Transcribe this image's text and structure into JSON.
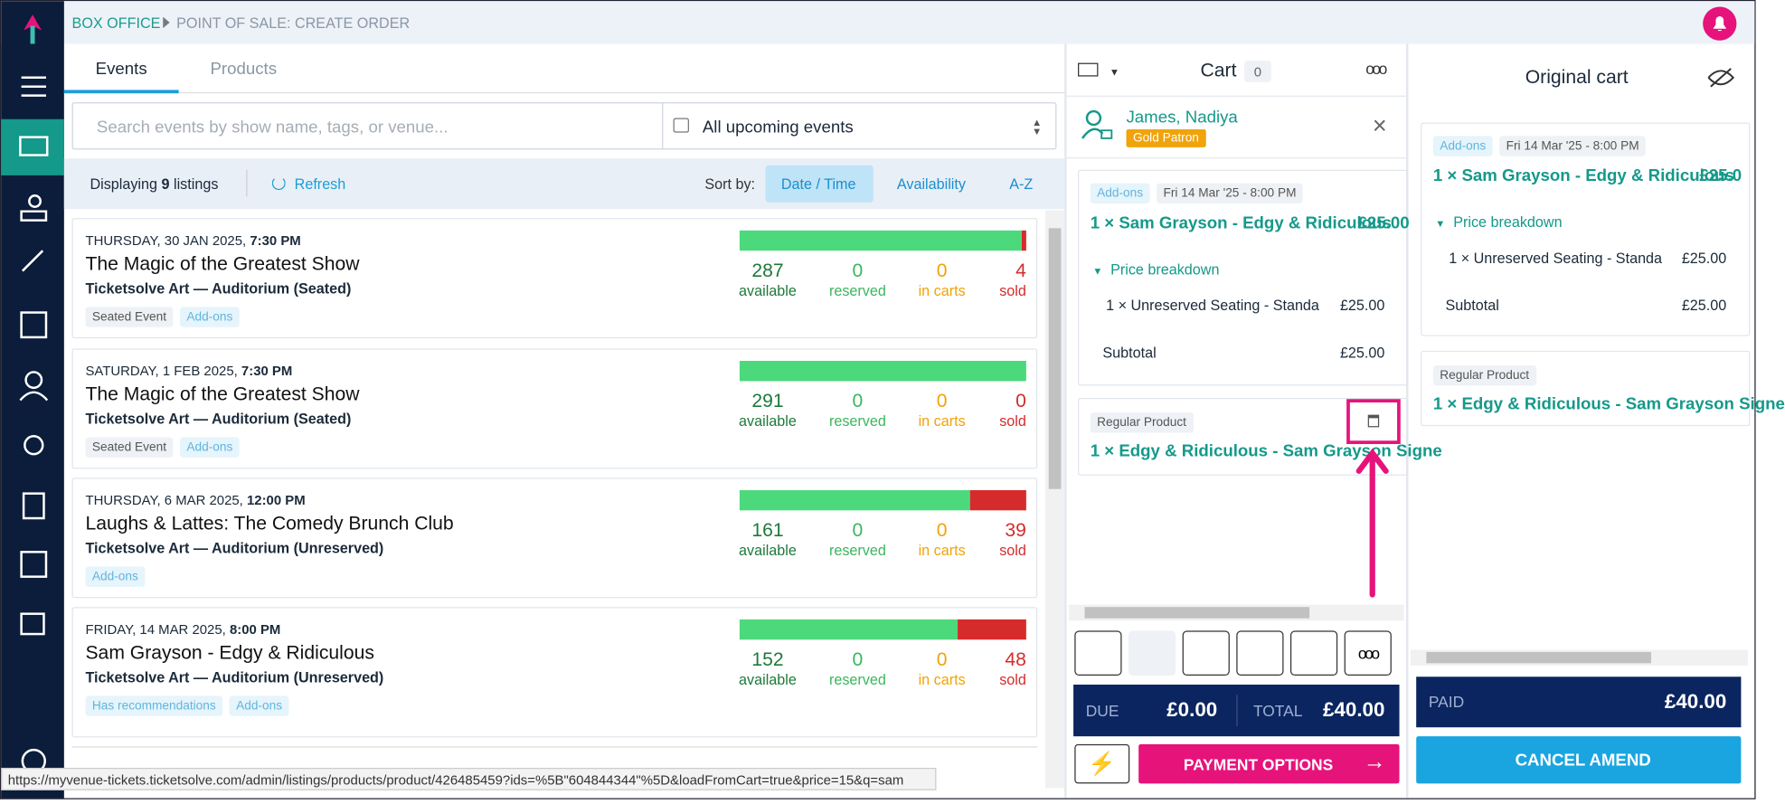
{
  "breadcrumb": {
    "root": "BOX OFFICE",
    "current": "POINT OF SALE: CREATE ORDER"
  },
  "tabs": [
    "Events",
    "Products"
  ],
  "search": {
    "placeholder": "Search events by show name, tags, or venue...",
    "filter": "All upcoming events"
  },
  "listing_bar": {
    "prefix": "Displaying",
    "count": 9,
    "suffix": "listings",
    "refresh": "Refresh",
    "sort_label": "Sort by:",
    "sort_options": [
      "Date / Time",
      "Availability",
      "A-Z"
    ]
  },
  "events": [
    {
      "date": "THURSDAY, 30 JAN 2025,",
      "time": "7:30 PM",
      "title": "The Magic of the Greatest Show",
      "venue": "Ticketsolve Art — Auditorium (Seated)",
      "tags": [
        "Seated Event",
        "Add-ons"
      ],
      "stats": [
        {
          "value": 287,
          "label": "available"
        },
        {
          "value": 0,
          "label": "reserved"
        },
        {
          "value": 0,
          "label": "in carts"
        },
        {
          "value": 4,
          "label": "sold"
        }
      ]
    },
    {
      "date": "SATURDAY, 1 FEB 2025,",
      "time": "7:30 PM",
      "title": "The Magic of the Greatest Show",
      "venue": "Ticketsolve Art — Auditorium (Seated)",
      "tags": [
        "Seated Event",
        "Add-ons"
      ],
      "stats": [
        {
          "value": 291,
          "label": "available"
        },
        {
          "value": 0,
          "label": "reserved"
        },
        {
          "value": 0,
          "label": "in carts"
        },
        {
          "value": 0,
          "label": "sold"
        }
      ]
    },
    {
      "date": "THURSDAY, 6 MAR 2025,",
      "time": "12:00 PM",
      "title": "Laughs & Lattes: The Comedy Brunch Club",
      "venue": "Ticketsolve Art — Auditorium (Unreserved)",
      "tags": [
        "Add-ons"
      ],
      "stats": [
        {
          "value": 161,
          "label": "available"
        },
        {
          "value": 0,
          "label": "reserved"
        },
        {
          "value": 0,
          "label": "in carts"
        },
        {
          "value": 39,
          "label": "sold"
        }
      ]
    },
    {
      "date": "FRIDAY, 14 MAR 2025,",
      "time": "8:00 PM",
      "title": "Sam Grayson - Edgy & Ridiculous",
      "venue": "Ticketsolve Art — Auditorium (Unreserved)",
      "tags": [
        "Has recommendations",
        "Add-ons"
      ],
      "stats": [
        {
          "value": 152,
          "label": "available"
        },
        {
          "value": 0,
          "label": "reserved"
        },
        {
          "value": 0,
          "label": "in carts"
        },
        {
          "value": 48,
          "label": "sold"
        }
      ]
    }
  ],
  "status_url": "https://myvenue-tickets.ticketsolve.com/admin/listings/products/product/426485459?ids=%5B\"604844344\"%5D&loadFromCart=true&price=15&q=sam",
  "cart": {
    "title": "Cart",
    "count": 0,
    "customer": {
      "name": "James, Nadiya",
      "badge": "Gold Patron"
    },
    "event_item": {
      "tags": [
        "Add-ons",
        "Fri 14 Mar '25 - 8:00 PM"
      ],
      "title": "1 × Sam Grayson - Edgy & Ridiculous",
      "price": "£25.00",
      "breakdown_label": "Price breakdown",
      "line": "1 × Unreserved Seating - Standa",
      "line_price": "£25.00",
      "subtotal_label": "Subtotal",
      "subtotal": "£25.00"
    },
    "product_item": {
      "tag": "Regular Product",
      "title": "1 × Edgy & Ridiculous - Sam Grayson Signe"
    },
    "due_label": "DUE",
    "due": "£0.00",
    "total_label": "TOTAL",
    "total": "£40.00",
    "payment": "PAYMENT OPTIONS"
  },
  "original_cart": {
    "title": "Original cart",
    "event_item": {
      "tags": [
        "Add-ons",
        "Fri 14 Mar '25 - 8:00 PM"
      ],
      "title": "1 × Sam Grayson - Edgy & Ridiculous",
      "price": "£25.0",
      "breakdown_label": "Price breakdown",
      "line": "1 × Unreserved Seating - Standa",
      "line_price": "£25.00",
      "subtotal_label": "Subtotal",
      "subtotal": "£25.00"
    },
    "product_item": {
      "tag": "Regular Product",
      "title": "1 × Edgy & Ridiculous - Sam Grayson Signe"
    },
    "paid_label": "PAID",
    "paid": "£40.00",
    "cancel": "CANCEL AMEND"
  }
}
